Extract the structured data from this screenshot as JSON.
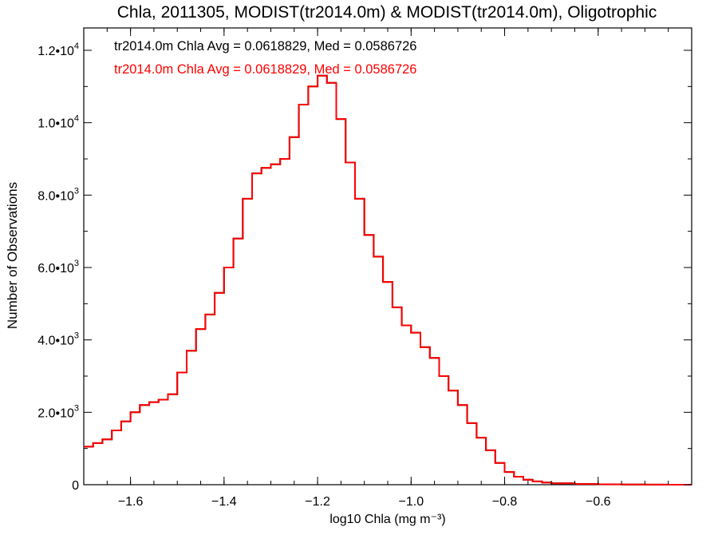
{
  "chart_data": {
    "type": "histogram",
    "title": "Chla, 2011305, MODIST(tr2014.0m) & MODIST(tr2014.0m), Oligotrophic",
    "xlabel": "log10 Chla (mg m⁻³)",
    "ylabel": "Number of Observations",
    "xlim": [
      -1.7,
      -0.4
    ],
    "ylim": [
      0,
      12000
    ],
    "grid": false,
    "x_ticks": [
      {
        "value": -1.6,
        "label": "−1.6"
      },
      {
        "value": -1.4,
        "label": "−1.4"
      },
      {
        "value": -1.2,
        "label": "−1.2"
      },
      {
        "value": -1.0,
        "label": "−1.0"
      },
      {
        "value": -0.8,
        "label": "−0.8"
      },
      {
        "value": -0.6,
        "label": "−0.6"
      }
    ],
    "y_ticks": [
      {
        "value": 0,
        "mant": "0",
        "exp": ""
      },
      {
        "value": 2000,
        "mant": "2.0•10",
        "exp": "3"
      },
      {
        "value": 4000,
        "mant": "4.0•10",
        "exp": "3"
      },
      {
        "value": 6000,
        "mant": "6.0•10",
        "exp": "3"
      },
      {
        "value": 8000,
        "mant": "8.0•10",
        "exp": "3"
      },
      {
        "value": 10000,
        "mant": "1.0•10",
        "exp": "4"
      },
      {
        "value": 12000,
        "mant": "1.2•10",
        "exp": "4"
      }
    ],
    "annotations": [
      {
        "text": "tr2014.0m Chla Avg = 0.0618829, Med = 0.0586726",
        "color": "#000000"
      },
      {
        "text": "tr2014.0m Chla Avg = 0.0618829, Med = 0.0586726",
        "color": "#ff0000"
      }
    ],
    "series": [
      {
        "color": "#000000",
        "x": [
          -1.7,
          -1.68,
          -1.66,
          -1.64,
          -1.62,
          -1.6,
          -1.58,
          -1.56,
          -1.54,
          -1.52,
          -1.5,
          -1.48,
          -1.46,
          -1.44,
          -1.42,
          -1.4,
          -1.38,
          -1.36,
          -1.34,
          -1.32,
          -1.3,
          -1.28,
          -1.26,
          -1.24,
          -1.22,
          -1.2,
          -1.19,
          -1.18,
          -1.16,
          -1.14,
          -1.12,
          -1.1,
          -1.08,
          -1.06,
          -1.04,
          -1.02,
          -1.0,
          -0.98,
          -0.96,
          -0.94,
          -0.92,
          -0.9,
          -0.88,
          -0.86,
          -0.84,
          -0.82,
          -0.8,
          -0.78,
          -0.76,
          -0.74,
          -0.72,
          -0.7,
          -0.65,
          -0.6,
          -0.55,
          -0.5,
          -0.45,
          -0.4
        ],
        "y": [
          1050,
          1150,
          1250,
          1500,
          1750,
          2000,
          2200,
          2280,
          2350,
          2500,
          3100,
          3700,
          4300,
          4700,
          5300,
          6000,
          6800,
          7900,
          8600,
          8750,
          8850,
          9000,
          9600,
          10500,
          11000,
          11300,
          11300,
          11100,
          10100,
          8900,
          7900,
          6900,
          6300,
          5600,
          4900,
          4400,
          4200,
          3800,
          3500,
          3000,
          2600,
          2200,
          1700,
          1300,
          950,
          600,
          350,
          220,
          140,
          90,
          60,
          40,
          20,
          10,
          5,
          2,
          1,
          0
        ]
      },
      {
        "color": "#ff0000",
        "x": [
          -1.7,
          -1.68,
          -1.66,
          -1.64,
          -1.62,
          -1.6,
          -1.58,
          -1.56,
          -1.54,
          -1.52,
          -1.5,
          -1.48,
          -1.46,
          -1.44,
          -1.42,
          -1.4,
          -1.38,
          -1.36,
          -1.34,
          -1.32,
          -1.3,
          -1.28,
          -1.26,
          -1.24,
          -1.22,
          -1.2,
          -1.19,
          -1.18,
          -1.16,
          -1.14,
          -1.12,
          -1.1,
          -1.08,
          -1.06,
          -1.04,
          -1.02,
          -1.0,
          -0.98,
          -0.96,
          -0.94,
          -0.92,
          -0.9,
          -0.88,
          -0.86,
          -0.84,
          -0.82,
          -0.8,
          -0.78,
          -0.76,
          -0.74,
          -0.72,
          -0.7,
          -0.65,
          -0.6,
          -0.55,
          -0.5,
          -0.45,
          -0.4
        ],
        "y": [
          1050,
          1150,
          1250,
          1500,
          1750,
          2000,
          2200,
          2280,
          2350,
          2500,
          3100,
          3700,
          4300,
          4700,
          5300,
          6000,
          6800,
          7900,
          8600,
          8750,
          8850,
          9000,
          9600,
          10500,
          11000,
          11300,
          11300,
          11100,
          10100,
          8900,
          7900,
          6900,
          6300,
          5600,
          4900,
          4400,
          4200,
          3800,
          3500,
          3000,
          2600,
          2200,
          1700,
          1300,
          950,
          600,
          350,
          220,
          140,
          90,
          60,
          40,
          20,
          10,
          5,
          2,
          1,
          0
        ]
      }
    ]
  }
}
